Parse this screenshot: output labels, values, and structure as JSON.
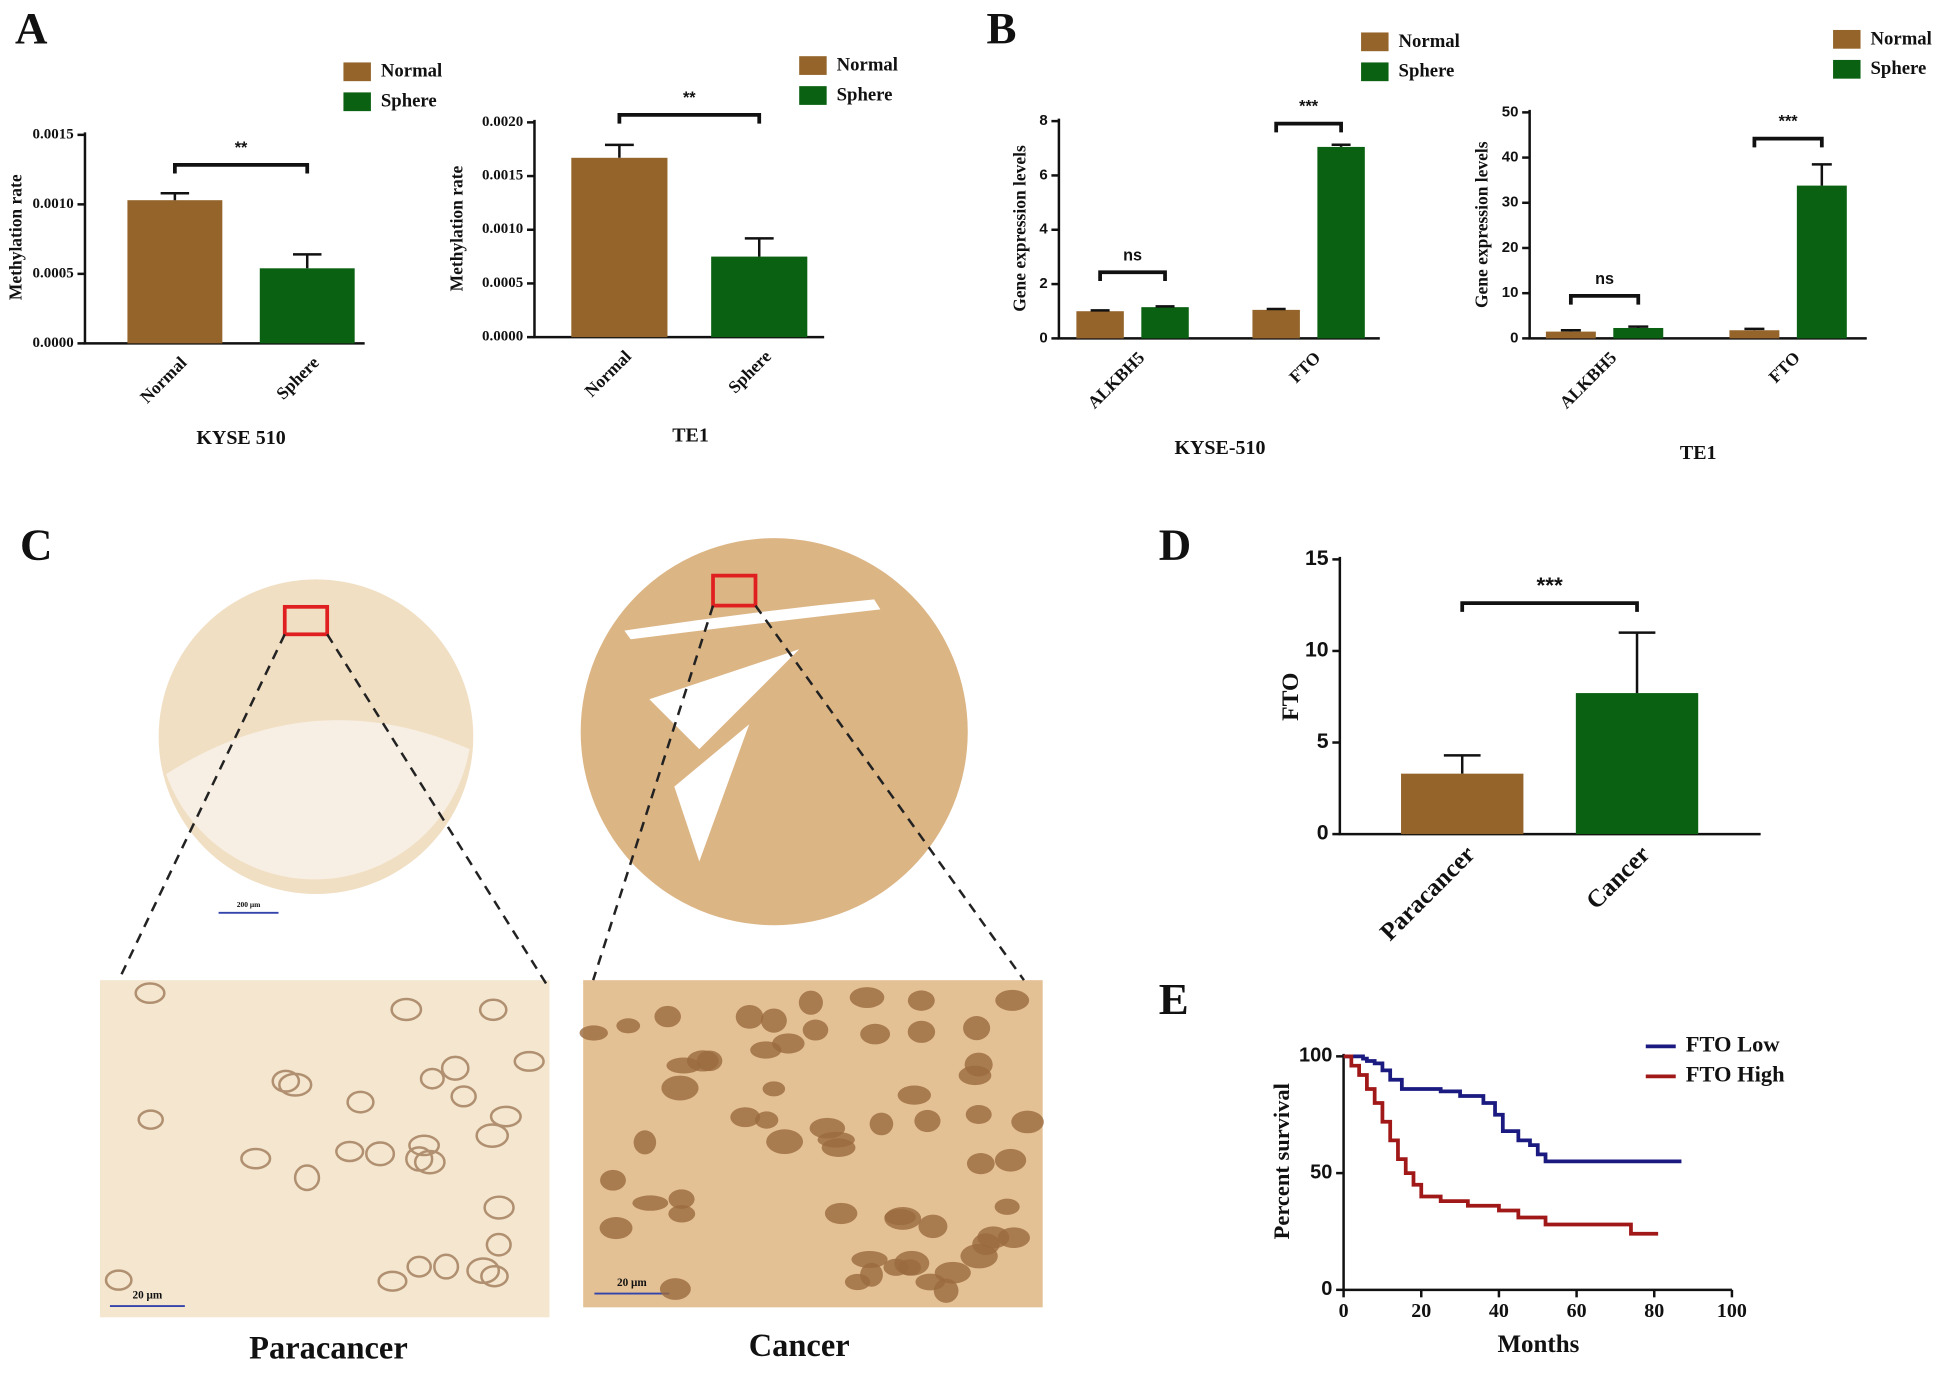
{
  "figure": {
    "panel_labels": [
      "A",
      "B",
      "C",
      "D",
      "E"
    ],
    "panel_c": {
      "labels": [
        "Paracancer",
        "Cancer"
      ],
      "scale_bars": [
        "200 μm",
        "20 μm",
        "20 μm"
      ]
    }
  },
  "chart_data": [
    {
      "type": "bar",
      "xlabel": "KYSE 510",
      "ylabel": "Methylation rate",
      "categories": [
        "Normal",
        "Sphere"
      ],
      "values": [
        0.00103,
        0.00054
      ],
      "errors": [
        5e-05,
        0.0001
      ],
      "colors": [
        "#94642a",
        "#0b6112"
      ],
      "ylim": [
        0,
        0.0015
      ],
      "yticks": [
        {
          "value": 0,
          "label": "0.0000"
        },
        {
          "value": 0.0005,
          "label": "0.0005"
        },
        {
          "value": 0.001,
          "label": "0.0010"
        },
        {
          "value": 0.0015,
          "label": "0.0015"
        }
      ],
      "legend": [
        "Normal",
        "Sphere"
      ],
      "significance": "**"
    },
    {
      "type": "bar",
      "xlabel": "TE1",
      "ylabel": "Methylation rate",
      "categories": [
        "Normal",
        "Sphere"
      ],
      "values": [
        0.00167,
        0.00075
      ],
      "errors": [
        0.00012,
        0.00017
      ],
      "colors": [
        "#94642a",
        "#0b6112"
      ],
      "ylim": [
        0,
        0.002
      ],
      "yticks": [
        {
          "value": 0,
          "label": "0.0000"
        },
        {
          "value": 0.0005,
          "label": "0.0005"
        },
        {
          "value": 0.001,
          "label": "0.0010"
        },
        {
          "value": 0.0015,
          "label": "0.0015"
        },
        {
          "value": 0.002,
          "label": "0.0020"
        }
      ],
      "legend": [
        "Normal",
        "Sphere"
      ],
      "significance": "**"
    },
    {
      "type": "grouped_bar",
      "xlabel": "KYSE-510",
      "ylabel": "Gene expression levels",
      "categories": [
        "ALKBH5",
        "FTO"
      ],
      "series": [
        {
          "name": "Normal",
          "color": "#94642a",
          "values": [
            1.0,
            1.05
          ],
          "errors": [
            0.03,
            0.03
          ]
        },
        {
          "name": "Sphere",
          "color": "#0b6112",
          "values": [
            1.15,
            7.05
          ],
          "errors": [
            0.03,
            0.08
          ]
        }
      ],
      "ylim": [
        0,
        8
      ],
      "yticks": [
        0,
        2,
        4,
        6,
        8
      ],
      "significance": [
        "ns",
        "***"
      ]
    },
    {
      "type": "grouped_bar",
      "xlabel": "TE1",
      "ylabel": "Gene expression levels",
      "categories": [
        "ALKBH5",
        "FTO"
      ],
      "series": [
        {
          "name": "Normal",
          "color": "#94642a",
          "values": [
            1.5,
            1.8
          ],
          "errors": [
            0.3,
            0.3
          ]
        },
        {
          "name": "Sphere",
          "color": "#0b6112",
          "values": [
            2.3,
            33.8
          ],
          "errors": [
            0.3,
            4.7
          ]
        }
      ],
      "ylim": [
        0,
        50
      ],
      "yticks": [
        0,
        10,
        20,
        30,
        40,
        50
      ],
      "significance": [
        "ns",
        "***"
      ]
    },
    {
      "type": "bar",
      "ylabel": "FTO",
      "categories": [
        "Paracancer",
        "Cancer"
      ],
      "values": [
        3.3,
        7.7
      ],
      "errors": [
        1.0,
        3.3
      ],
      "colors": [
        "#94642a",
        "#0b6112"
      ],
      "ylim": [
        0,
        15
      ],
      "yticks": [
        0,
        5,
        10,
        15
      ],
      "significance": "***"
    },
    {
      "type": "line",
      "xlabel": "Months",
      "ylabel": "Percent survival",
      "xlim": [
        0,
        100
      ],
      "xticks": [
        0,
        20,
        40,
        60,
        80,
        100
      ],
      "ylim": [
        0,
        100
      ],
      "yticks": [
        0,
        50,
        100
      ],
      "series": [
        {
          "name": "FTO Low",
          "color": "#1a1a80",
          "x": [
            0,
            5,
            5,
            6,
            6,
            8,
            8,
            10,
            10,
            12,
            12,
            15,
            15,
            25,
            25,
            30,
            30,
            36,
            36,
            39,
            39,
            41,
            41,
            45,
            45,
            48,
            48,
            50,
            50,
            52,
            52,
            87
          ],
          "values": [
            100,
            100,
            99,
            99,
            98,
            98,
            97,
            97,
            94,
            94,
            90,
            90,
            86,
            86,
            85,
            85,
            83,
            83,
            80,
            80,
            75,
            75,
            68,
            68,
            64,
            64,
            62,
            62,
            58,
            58,
            55,
            55
          ]
        },
        {
          "name": "FTO High",
          "color": "#a01818",
          "x": [
            0,
            2,
            2,
            4,
            4,
            6,
            6,
            8,
            8,
            10,
            10,
            12,
            12,
            14,
            14,
            16,
            16,
            18,
            18,
            20,
            20,
            25,
            25,
            32,
            32,
            40,
            40,
            45,
            45,
            52,
            52,
            74,
            74,
            81
          ],
          "values": [
            100,
            100,
            96,
            96,
            92,
            92,
            86,
            86,
            80,
            80,
            72,
            72,
            64,
            64,
            56,
            56,
            50,
            50,
            45,
            45,
            40,
            40,
            38,
            38,
            36,
            36,
            34,
            34,
            31,
            31,
            28,
            28,
            24,
            24
          ]
        }
      ]
    }
  ]
}
